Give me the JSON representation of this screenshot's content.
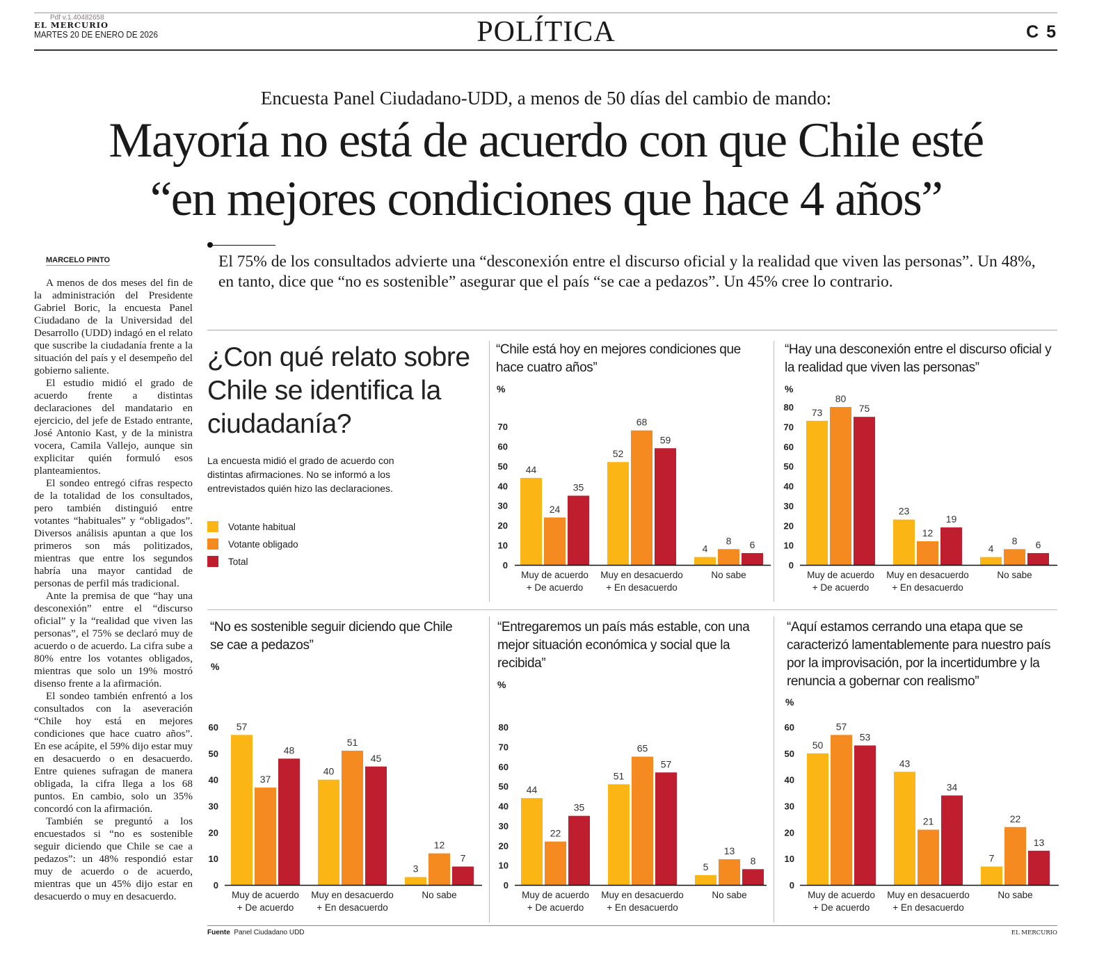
{
  "header": {
    "pdf_version": "Pdf v.1.40482658",
    "newspaper": "EL MERCURIO",
    "date": "MARTES 20 DE ENERO DE 2026",
    "section": "POLÍTICA",
    "page": "C 5"
  },
  "article": {
    "kicker": "Encuesta Panel Ciudadano-UDD, a menos de 50 días del cambio de mando:",
    "headline_lines": [
      "Mayoría no está de acuerdo con que Chile esté",
      "“en mejores condiciones que hace 4 años”"
    ],
    "deck": "El 75% de los consultados advierte una “desconexión entre el discurso oficial y la realidad que viven las personas”. Un 48%, en tanto, dice que “no es sostenible” asegurar que el país “se cae a pedazos”. Un 45% cree lo contrario.",
    "byline": "MARCELO PINTO",
    "paragraphs": [
      "A menos de dos meses del fin de la administración del Presidente Gabriel Boric, la encuesta Panel Ciudadano de la Universidad del Desarrollo (UDD) indagó en el relato que suscribe la ciudadanía frente a la situación del país y el desempeño del gobierno saliente.",
      "El estudio midió el grado de acuerdo frente a distintas declaraciones del mandatario en ejercicio, del jefe de Estado entrante, José Antonio Kast, y de la ministra vocera, Camila Vallejo, aunque sin explicitar quién formuló esos planteamientos.",
      "El sondeo entregó cifras respecto de la totalidad de los consultados, pero también distinguió entre votantes “habituales” y “obligados”. Diversos análisis apuntan a que los primeros son más politizados, mientras que entre los segundos habría una mayor cantidad de personas de perfil más tradicional.",
      "Ante la premisa de que “hay una desconexión” entre el “discurso oficial” y la “realidad que viven las personas”, el 75% se declaró muy de acuerdo o de acuerdo. La cifra sube a 80% entre los votantes obligados, mientras que solo un 19% mostró disenso frente a la afirmación.",
      "El sondeo también enfrentó a los consultados con la aseveración “Chile hoy está en mejores condiciones que hace cuatro años”. En ese acápite, el 59% dijo estar muy en desacuerdo o en desacuerdo. Entre quienes sufragan de manera obligada, la cifra llega a los 68 puntos. En cambio, solo un 35% concordó con la afirmación.",
      "También se preguntó a los encuestados si “no es sostenible seguir diciendo que Chile se cae a pedazos”: un 48% respondió estar muy de acuerdo o de acuerdo, mientras que un 45% dijo estar en desacuerdo o muy en desacuerdo."
    ]
  },
  "infographic": {
    "heading": "¿Con qué relato sobre Chile se identifica la ciudadanía?",
    "intro": "La encuesta midió el grado de acuerdo con distintas afirmaciones. No se informó a los entrevistados quién hizo las declaraciones.",
    "legend": [
      {
        "label": "Votante habitual",
        "color": "#FBB515"
      },
      {
        "label": "Votante obligado",
        "color": "#F48A20"
      },
      {
        "label": "Total",
        "color": "#BE1E2D"
      }
    ],
    "source_label": "Fuente",
    "source": "Panel Ciudadano UDD",
    "credit": "EL MERCURIO"
  },
  "chart_data": [
    {
      "type": "bar",
      "title": "“Chile está hoy en mejores condiciones que hace cuatro años”",
      "ylabel": "%",
      "ylim": [
        0,
        70
      ],
      "yticks": [
        0,
        10,
        20,
        30,
        40,
        50,
        60,
        70
      ],
      "categories": [
        [
          "Muy de acuerdo",
          "+ De acuerdo"
        ],
        [
          "Muy en desacuerdo",
          "+ En desacuerdo"
        ],
        [
          "No sabe",
          ""
        ]
      ],
      "series": [
        {
          "name": "Votante habitual",
          "values": [
            44,
            52,
            4
          ]
        },
        {
          "name": "Votante obligado",
          "values": [
            24,
            68,
            8
          ]
        },
        {
          "name": "Total",
          "values": [
            35,
            59,
            6
          ]
        }
      ]
    },
    {
      "type": "bar",
      "title": "“Hay una desconexión entre el discurso oficial y la realidad que viven las personas”",
      "ylabel": "%",
      "ylim": [
        0,
        80
      ],
      "yticks": [
        0,
        10,
        20,
        30,
        40,
        50,
        60,
        70,
        80
      ],
      "categories": [
        [
          "Muy de acuerdo",
          "+ De acuerdo"
        ],
        [
          "Muy en desacuerdo",
          "+ En desacuerdo"
        ],
        [
          "No sabe",
          ""
        ]
      ],
      "series": [
        {
          "name": "Votante habitual",
          "values": [
            73,
            23,
            4
          ]
        },
        {
          "name": "Votante obligado",
          "values": [
            80,
            12,
            8
          ]
        },
        {
          "name": "Total",
          "values": [
            75,
            19,
            6
          ]
        }
      ]
    },
    {
      "type": "bar",
      "title": "“No es sostenible seguir diciendo que Chile se cae a pedazos”",
      "ylabel": "%",
      "ylim": [
        0,
        60
      ],
      "yticks": [
        0,
        10,
        20,
        30,
        40,
        50,
        60
      ],
      "categories": [
        [
          "Muy de acuerdo",
          "+ De acuerdo"
        ],
        [
          "Muy en desacuerdo",
          "+ En desacuerdo"
        ],
        [
          "No sabe",
          ""
        ]
      ],
      "series": [
        {
          "name": "Votante habitual",
          "values": [
            57,
            40,
            3
          ]
        },
        {
          "name": "Votante obligado",
          "values": [
            37,
            51,
            12
          ]
        },
        {
          "name": "Total",
          "values": [
            48,
            45,
            7
          ]
        }
      ]
    },
    {
      "type": "bar",
      "title": "“Entregaremos un país más estable, con una mejor situación económica y social que la recibida”",
      "ylabel": "%",
      "ylim": [
        0,
        80
      ],
      "yticks": [
        0,
        10,
        20,
        30,
        40,
        50,
        60,
        70,
        80
      ],
      "categories": [
        [
          "Muy de acuerdo",
          "+ De acuerdo"
        ],
        [
          "Muy en desacuerdo",
          "+ En desacuerdo"
        ],
        [
          "No sabe",
          ""
        ]
      ],
      "series": [
        {
          "name": "Votante habitual",
          "values": [
            44,
            51,
            5
          ]
        },
        {
          "name": "Votante obligado",
          "values": [
            22,
            65,
            13
          ]
        },
        {
          "name": "Total",
          "values": [
            35,
            57,
            8
          ]
        }
      ]
    },
    {
      "type": "bar",
      "title": "“Aquí estamos cerrando una etapa que se caracterizó lamentablemente para nuestro país por la improvisación, por la incertidumbre y la renuncia a gobernar con realismo”",
      "ylabel": "%",
      "ylim": [
        0,
        60
      ],
      "yticks": [
        0,
        10,
        20,
        30,
        40,
        50,
        60
      ],
      "categories": [
        [
          "Muy de acuerdo",
          "+ De acuerdo"
        ],
        [
          "Muy en desacuerdo",
          "+ En desacuerdo"
        ],
        [
          "No sabe",
          ""
        ]
      ],
      "series": [
        {
          "name": "Votante habitual",
          "values": [
            50,
            43,
            7
          ]
        },
        {
          "name": "Votante obligado",
          "values": [
            57,
            21,
            22
          ]
        },
        {
          "name": "Total",
          "values": [
            53,
            34,
            13
          ]
        }
      ]
    }
  ]
}
